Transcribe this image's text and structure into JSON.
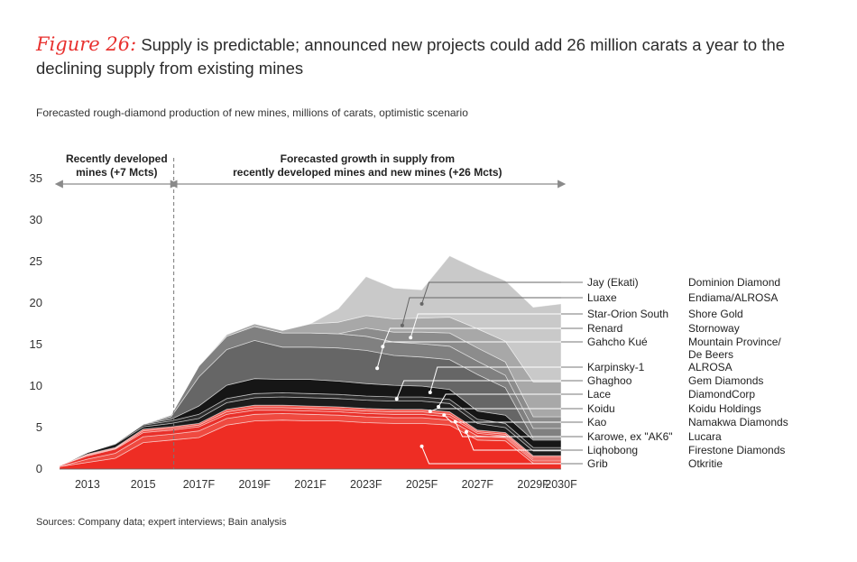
{
  "header": {
    "figure_label": "Figure 26:",
    "title": "Supply is predictable; announced new projects could add 26 million carats a year to the declining supply from existing mines",
    "subtitle": "Forecasted rough-diamond production of new mines, millions of carats, optimistic scenario"
  },
  "footer": {
    "source": "Sources: Company data; expert interviews; Bain analysis"
  },
  "chart_data": {
    "type": "area",
    "stacked": true,
    "title": "Forecasted rough-diamond production of new mines, millions of carats, optimistic scenario",
    "xlabel": "",
    "ylabel": "",
    "ylim": [
      0,
      35
    ],
    "yticks": [
      "0",
      "5",
      "10",
      "15",
      "20",
      "25",
      "30",
      "35"
    ],
    "years": [
      2012,
      2013,
      2014,
      2015,
      2016,
      2017,
      2018,
      2019,
      2020,
      2021,
      2022,
      2023,
      2024,
      2025,
      2026,
      2027,
      2028,
      2029,
      2030
    ],
    "x_tick_labels": [
      {
        "year": 2013,
        "label": "2013"
      },
      {
        "year": 2015,
        "label": "2015"
      },
      {
        "year": 2017,
        "label": "2017F"
      },
      {
        "year": 2019,
        "label": "2019F"
      },
      {
        "year": 2021,
        "label": "2021F"
      },
      {
        "year": 2023,
        "label": "2023F"
      },
      {
        "year": 2025,
        "label": "2025F"
      },
      {
        "year": 2027,
        "label": "2027F"
      },
      {
        "year": 2029,
        "label": "2029F"
      },
      {
        "year": 2030,
        "label": "2030F"
      }
    ],
    "divider_year": 2016.1,
    "annotations": [
      {
        "id": "recent",
        "lines": [
          "Recently developed",
          "mines (+7 Mcts)"
        ],
        "from_year": 2012,
        "to_year": 2016.1
      },
      {
        "id": "forecast",
        "lines": [
          "Forecasted growth in supply from",
          "recently developed mines and new mines (+26 Mcts)"
        ],
        "from_year": 2016.1,
        "to_year": 2030
      }
    ],
    "series": [
      {
        "name": "Grib",
        "company": "Otkritie",
        "color": "#ee2d24",
        "values": [
          0.3,
          0.8,
          1.3,
          3.2,
          3.5,
          3.8,
          5.3,
          5.8,
          5.9,
          5.8,
          5.8,
          5.6,
          5.5,
          5.5,
          5.3,
          3.5,
          3.4,
          0.7,
          0.7
        ]
      },
      {
        "name": "Liqhobong",
        "company": "Firestone Diamonds",
        "color": "#ef4a40",
        "values": [
          0,
          0.4,
          0.6,
          0.7,
          0.7,
          0.8,
          0.8,
          0.8,
          0.8,
          0.8,
          0.7,
          0.7,
          0.7,
          0.7,
          0.6,
          0.5,
          0.4,
          0.3,
          0.3
        ]
      },
      {
        "name": "Karowe, ex \"AK6\"",
        "company": "Lucara",
        "color": "#e9302a",
        "values": [
          0.1,
          0.4,
          0.5,
          0.5,
          0.5,
          0.5,
          0.5,
          0.5,
          0.4,
          0.4,
          0.4,
          0.4,
          0.4,
          0.4,
          0.4,
          0.3,
          0.2,
          0.2,
          0.2
        ]
      },
      {
        "name": "Kao",
        "company": "Namakwa Diamonds",
        "color": "#ed3f37",
        "values": [
          0,
          0.1,
          0.1,
          0.2,
          0.2,
          0.2,
          0.3,
          0.3,
          0.3,
          0.3,
          0.3,
          0.3,
          0.3,
          0.3,
          0.3,
          0.2,
          0.2,
          0.2,
          0.2
        ]
      },
      {
        "name": "Koidu",
        "company": "Koidu Holdings",
        "color": "#f0554c",
        "values": [
          0,
          0.1,
          0.1,
          0.2,
          0.2,
          0.2,
          0.3,
          0.3,
          0.3,
          0.3,
          0.3,
          0.3,
          0.3,
          0.3,
          0.3,
          0.2,
          0.2,
          0.2,
          0.2
        ]
      },
      {
        "name": "Lace",
        "company": "DiamondCorp",
        "color": "#1c1c1c",
        "values": [
          0,
          0.2,
          0.4,
          0.3,
          0.4,
          0.6,
          0.8,
          0.9,
          1.0,
          1.0,
          1.0,
          1.0,
          1.0,
          1.0,
          1.0,
          0.8,
          0.6,
          0.6,
          0.6
        ]
      },
      {
        "name": "Ghaghoo",
        "company": "Gem Diamonds",
        "color": "#2c2c2c",
        "values": [
          0,
          0,
          0.1,
          0.2,
          0.3,
          0.5,
          0.5,
          0.5,
          0.5,
          0.5,
          0.5,
          0.5,
          0.5,
          0.5,
          0.5,
          0.5,
          0.5,
          0.4,
          0.4
        ]
      },
      {
        "name": "Karpinsky-1",
        "company": "ALROSA",
        "color": "#161616",
        "values": [
          0,
          0,
          0,
          0.1,
          0.2,
          1.0,
          1.6,
          1.8,
          1.6,
          1.7,
          1.6,
          1.5,
          1.4,
          1.3,
          1.2,
          1.0,
          1.0,
          0.9,
          0.9
        ]
      },
      {
        "name": "Gahcho Kué",
        "company": "Mountain Province/ De Beers",
        "color": "#666666",
        "values": [
          0,
          0,
          0,
          0,
          0.3,
          3.5,
          4.3,
          4.6,
          3.9,
          3.9,
          4.0,
          4.0,
          3.6,
          3.5,
          3.6,
          4.4,
          3.3,
          0.2,
          0.2
        ]
      },
      {
        "name": "Renard",
        "company": "Stornoway",
        "color": "#808080",
        "values": [
          0,
          0,
          0,
          0,
          0.2,
          1.3,
          1.6,
          1.7,
          1.7,
          1.7,
          1.7,
          1.7,
          1.6,
          1.6,
          1.6,
          1.6,
          1.5,
          1.2,
          1.2
        ]
      },
      {
        "name": "Star-Orion South",
        "company": "Shore Gold",
        "color": "#8c8c8c",
        "values": [
          0,
          0,
          0,
          0,
          0,
          0,
          0,
          0,
          0,
          0,
          0,
          1.0,
          1.2,
          1.4,
          1.6,
          1.6,
          1.6,
          1.4,
          1.4
        ]
      },
      {
        "name": "Luaxe",
        "company": "Endiama/ALROSA",
        "color": "#a8a8a8",
        "values": [
          0,
          0,
          0,
          0,
          0,
          0,
          0.2,
          0.3,
          0.3,
          1.1,
          1.4,
          1.5,
          1.6,
          1.7,
          1.9,
          2.3,
          2.5,
          4.2,
          4.2
        ]
      },
      {
        "name": "Jay (Ekati)",
        "company": "Dominion Diamond",
        "color": "#c9c9c9",
        "values": [
          0,
          0,
          0,
          0,
          0,
          0,
          0,
          0,
          0,
          0,
          1.6,
          4.7,
          3.7,
          3.4,
          7.4,
          7.2,
          7.3,
          9.0,
          9.4
        ]
      }
    ]
  }
}
